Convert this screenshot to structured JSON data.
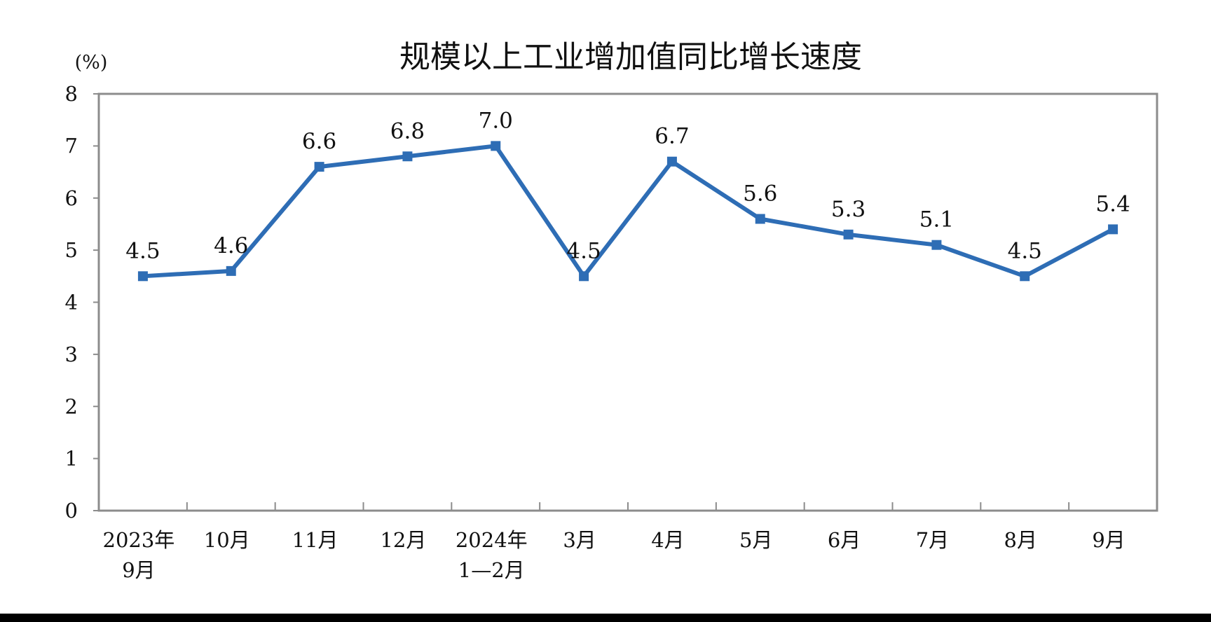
{
  "chart_data": {
    "type": "line",
    "title": "规模以上工业增加值同比增长速度",
    "ylabel": "(%)",
    "xlabel": "",
    "ylim": [
      0,
      8
    ],
    "yticks": [
      0,
      1,
      2,
      3,
      4,
      5,
      6,
      7,
      8
    ],
    "grid": false,
    "legend": "none",
    "categories": [
      [
        "2023年",
        "9月"
      ],
      [
        "10月"
      ],
      [
        "11月"
      ],
      [
        "12月"
      ],
      [
        "2024年",
        "1—2月"
      ],
      [
        "3月"
      ],
      [
        "4月"
      ],
      [
        "5月"
      ],
      [
        "6月"
      ],
      [
        "7月"
      ],
      [
        "8月"
      ],
      [
        "9月"
      ]
    ],
    "series": [
      {
        "values": [
          4.5,
          4.6,
          6.6,
          6.8,
          7.0,
          4.5,
          6.7,
          5.6,
          5.3,
          5.1,
          4.5,
          5.4
        ],
        "labels": [
          "4.5",
          "4.6",
          "6.6",
          "6.8",
          "7.0",
          "4.5",
          "6.7",
          "5.6",
          "5.3",
          "5.1",
          "4.5",
          "5.4"
        ],
        "color": "#2e6db5"
      }
    ],
    "axis_color": "#8c8c8c"
  }
}
